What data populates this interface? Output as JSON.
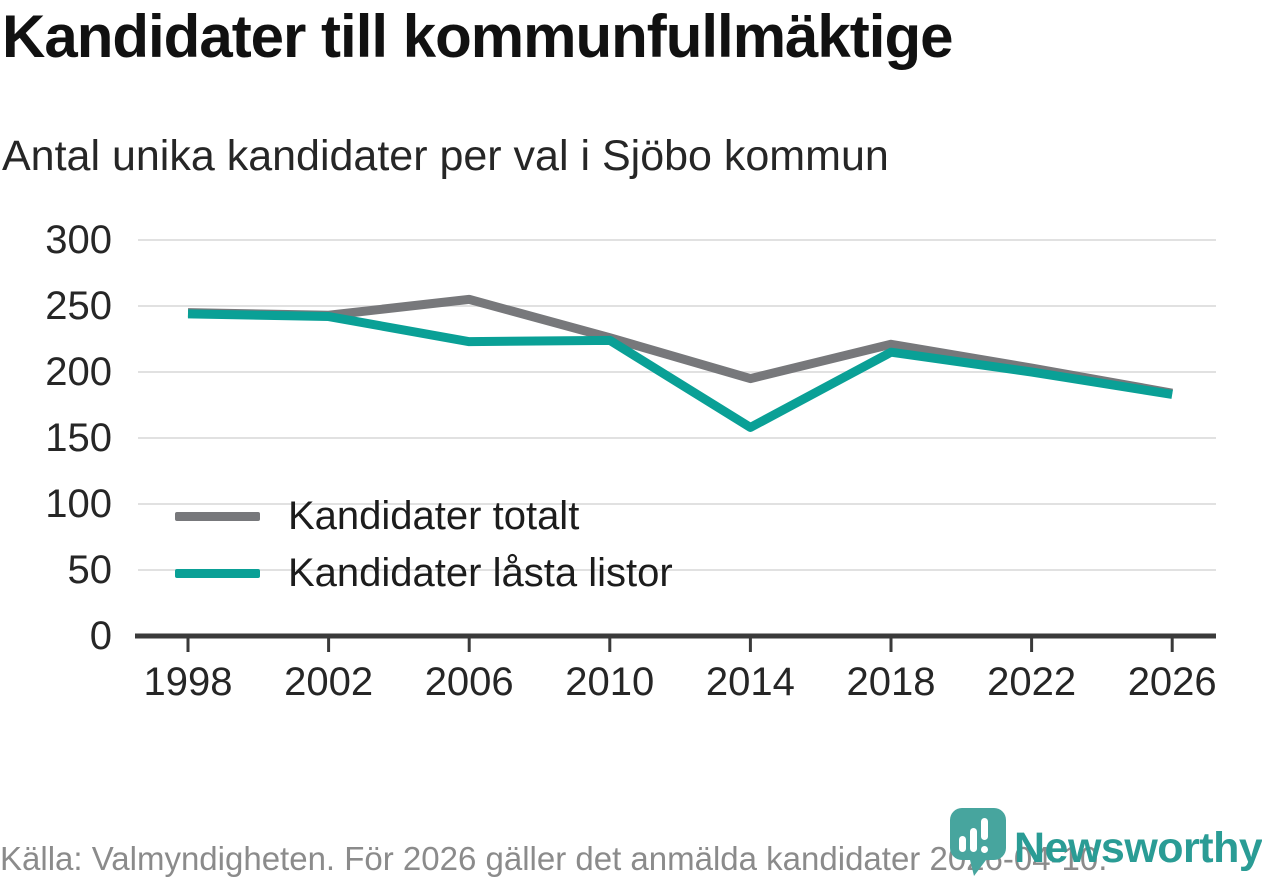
{
  "chart_data": {
    "type": "line",
    "title": "Kandidater till kommunfullmäktige",
    "subtitle": "Antal unika kandidater per val i Sjöbo kommun",
    "categories": [
      "1998",
      "2002",
      "2006",
      "2010",
      "2014",
      "2018",
      "2022",
      "2026"
    ],
    "series": [
      {
        "name": "Kandidater totalt",
        "color": "#77787b",
        "values": [
          245,
          243,
          255,
          226,
          195,
          221,
          203,
          184
        ]
      },
      {
        "name": "Kandidater låsta listor",
        "color": "#0aa096",
        "values": [
          244,
          242,
          223,
          224,
          158,
          215,
          200,
          183
        ]
      }
    ],
    "xlabel": "",
    "ylabel": "",
    "ylim": [
      0,
      300
    ],
    "y_ticks": [
      0,
      50,
      100,
      150,
      200,
      250,
      300
    ],
    "grid": true,
    "legend_position": "inside-bottom-left",
    "axis_color": "#3a3a3a",
    "grid_color": "#e1e1e1"
  },
  "footer": {
    "source": "Källa: Valmyndigheten. För 2026 gäller det anmälda kandidater 2026-04-10.",
    "brand": "Newsworthy",
    "brand_color": "#2a9c95",
    "logo_color": "#47a59e"
  }
}
